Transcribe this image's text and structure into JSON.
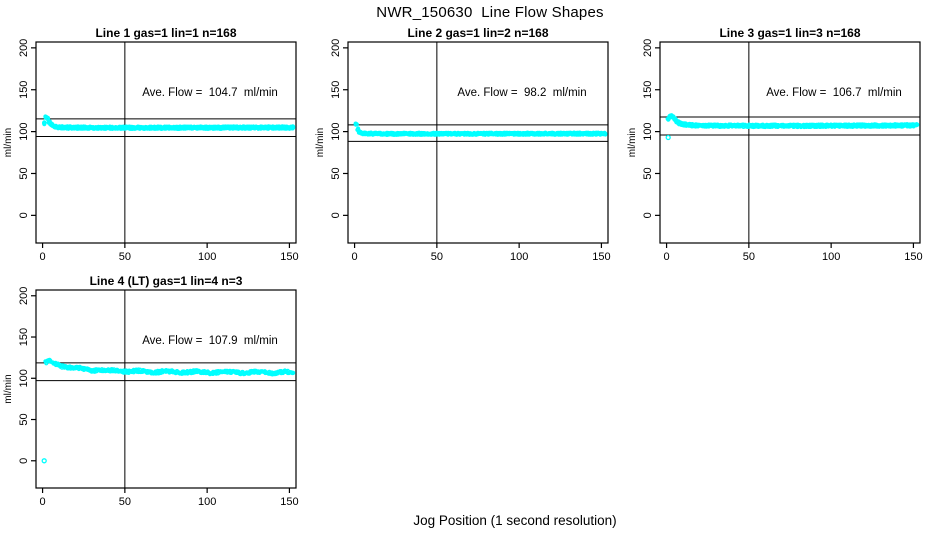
{
  "page_title": "NWR_150630  Line Flow Shapes",
  "xlabel": "Jog Position (1 second resolution)",
  "chart_data": [
    {
      "type": "scatter",
      "title": "Line 1 gas=1 lin=1 n=168",
      "annotation": "Ave. Flow =  104.7  ml/min",
      "ave_flow": 104.7,
      "ylabel": "ml/min",
      "x_ticks": [
        0,
        50,
        100,
        150
      ],
      "y_ticks": [
        0,
        50,
        100,
        150,
        200
      ],
      "xlim": [
        -4,
        154
      ],
      "ylim": [
        -33,
        207
      ],
      "vline_x": 50,
      "hline_upper": 115.2,
      "hline_lower": 94.2,
      "point_color": "#00ffff",
      "x_start": 1,
      "x_end": 152,
      "curve_x": [
        1,
        2,
        3,
        4,
        5,
        6,
        7,
        8,
        9,
        10,
        12,
        15,
        20,
        30,
        50,
        75,
        100,
        125,
        152
      ],
      "curve_y": [
        110,
        117.5,
        115.5,
        111.5,
        109,
        107.5,
        106.5,
        106,
        105.6,
        105.3,
        105,
        104.9,
        104.8,
        104.7,
        104.7,
        104.6,
        104.7,
        104.8,
        104.8
      ],
      "band": 1.4,
      "overplot": 5,
      "wiggle": 0,
      "seed": 11,
      "outliers": []
    },
    {
      "type": "scatter",
      "title": "Line 2 gas=1 lin=2 n=168",
      "annotation": "Ave. Flow =  98.2  ml/min",
      "ave_flow": 98.2,
      "ylabel": "ml/min",
      "x_ticks": [
        0,
        50,
        100,
        150
      ],
      "y_ticks": [
        0,
        50,
        100,
        150,
        200
      ],
      "xlim": [
        -4,
        154
      ],
      "ylim": [
        -33,
        207
      ],
      "vline_x": 50,
      "hline_upper": 108.0,
      "hline_lower": 88.4,
      "point_color": "#00ffff",
      "x_start": 1,
      "x_end": 152,
      "curve_x": [
        1,
        2,
        3,
        4,
        5,
        6,
        7,
        8,
        9,
        10,
        12,
        15,
        20,
        30,
        50,
        75,
        100,
        125,
        152
      ],
      "curve_y": [
        109,
        103,
        100,
        98.8,
        98.2,
        97.9,
        97.8,
        97.7,
        97.6,
        97.6,
        97.5,
        97.5,
        97.4,
        97.4,
        97.4,
        97.4,
        97.5,
        97.5,
        97.6
      ],
      "band": 1.2,
      "overplot": 5,
      "wiggle": 0,
      "seed": 22,
      "outliers": []
    },
    {
      "type": "scatter",
      "title": "Line 3 gas=1 lin=3 n=168",
      "annotation": "Ave. Flow =  106.7  ml/min",
      "ave_flow": 106.7,
      "ylabel": "ml/min",
      "x_ticks": [
        0,
        50,
        100,
        150
      ],
      "y_ticks": [
        0,
        50,
        100,
        150,
        200
      ],
      "xlim": [
        -4,
        154
      ],
      "ylim": [
        -33,
        207
      ],
      "vline_x": 50,
      "hline_upper": 117.4,
      "hline_lower": 96.0,
      "point_color": "#00ffff",
      "x_start": 1,
      "x_end": 152,
      "curve_x": [
        1,
        2,
        3,
        4,
        5,
        6,
        7,
        8,
        9,
        10,
        12,
        15,
        20,
        30,
        50,
        75,
        100,
        125,
        152
      ],
      "curve_y": [
        115,
        118,
        118.5,
        117,
        114.5,
        112.5,
        111,
        110,
        109.3,
        108.8,
        108.2,
        107.7,
        107.3,
        107,
        106.9,
        106.9,
        107,
        107.2,
        107.5
      ],
      "band": 1.4,
      "overplot": 5,
      "wiggle": 0,
      "seed": 33,
      "outliers": [
        [
          1,
          93
        ]
      ]
    },
    {
      "type": "scatter",
      "title": "Line 4 (LT) gas=1 lin=4 n=3",
      "annotation": "Ave. Flow =  107.9  ml/min",
      "ave_flow": 107.9,
      "ylabel": "ml/min",
      "x_ticks": [
        0,
        50,
        100,
        150
      ],
      "y_ticks": [
        0,
        50,
        100,
        150,
        200
      ],
      "xlim": [
        -4,
        154
      ],
      "ylim": [
        -33,
        207
      ],
      "vline_x": 50,
      "hline_upper": 118.7,
      "hline_lower": 97.1,
      "point_color": "#00ffff",
      "x_start": 2,
      "x_end": 152,
      "curve_x": [
        2,
        3,
        4,
        5,
        6,
        8,
        10,
        12,
        15,
        20,
        25,
        30,
        40,
        50,
        60,
        75,
        100,
        125,
        152
      ],
      "curve_y": [
        119,
        120.5,
        120,
        119.3,
        118.6,
        117.3,
        116,
        115,
        113.8,
        112.2,
        111,
        110.2,
        109.2,
        108.6,
        108.2,
        107.8,
        107.4,
        107.2,
        107
      ],
      "band": 1.6,
      "overplot": 3,
      "wiggle": 0.8,
      "seed": 44,
      "outliers": [
        [
          1,
          0
        ]
      ]
    }
  ]
}
